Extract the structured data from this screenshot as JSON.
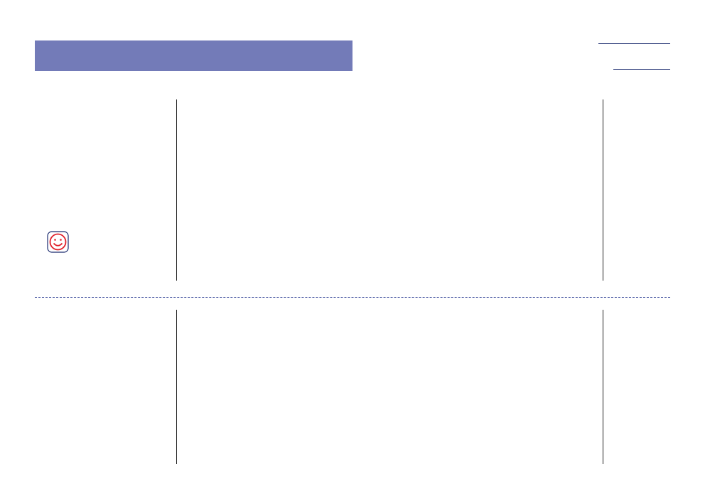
{
  "header": {
    "bar_color": "#737bb8"
  },
  "links": [
    {
      "text": "",
      "color": "#1a2a6e"
    },
    {
      "text": "",
      "color": "#1a2a6e"
    }
  ],
  "icons": {
    "smiley": "smiley-face-icon",
    "smiley_color": "#e0202a",
    "smiley_border": "#1a2a6e"
  },
  "divider_color": "#3a4a9a"
}
